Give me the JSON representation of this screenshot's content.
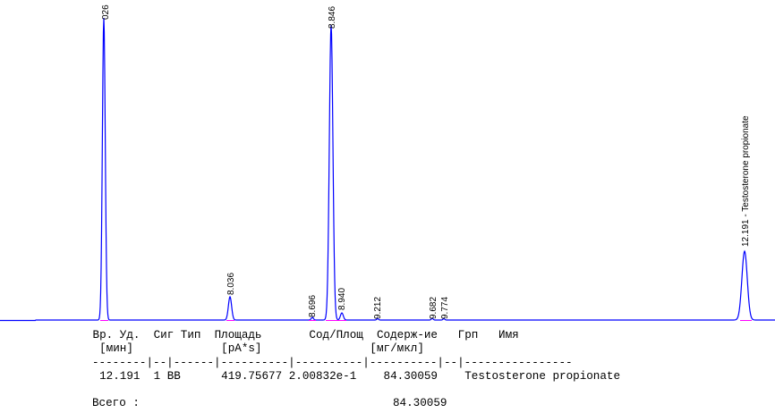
{
  "peaks": [
    "026",
    "8.036",
    "8.696",
    "8.846",
    "8.940",
    "9.212",
    "9.682",
    "9.774",
    "12.191 -  Testosterone propionate"
  ],
  "report": {
    "header": [
      " Вр. Уд.  Сиг Тип  Площадь       Сод/Площ  Содерж-ие   Грп   Имя",
      "  [мин]             [pA*s]                [мг/мкл]"
    ],
    "separator": "--------|--|------|----------|----------|----------|--|----------------",
    "rows": [
      "  12.191  1 BB      419.75677 2.00832e-1    84.30059    Testosterone propionate"
    ],
    "total_label": "Всего :",
    "total_value": "84.30059"
  }
}
